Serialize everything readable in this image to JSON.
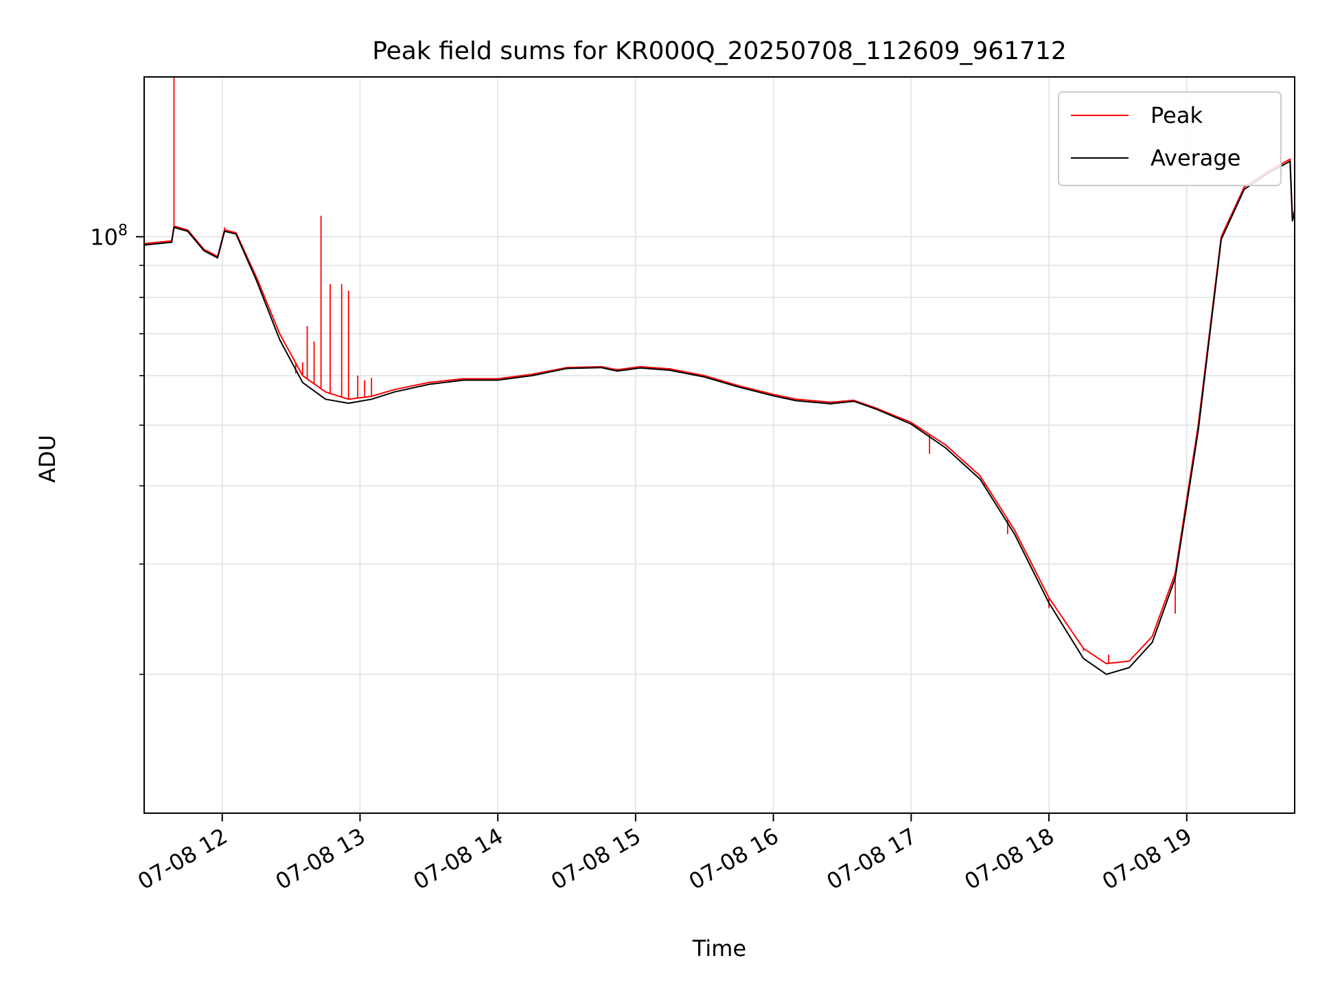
{
  "chart_data": {
    "type": "line",
    "title": "Peak field sums for KR000Q_20250708_112609_961712",
    "xlabel": "Time",
    "ylabel": "ADU",
    "y_scale": "log",
    "x_range": [
      "2025-07-08 11:26",
      "2025-07-08 19:47"
    ],
    "ylim": [
      12000000,
      180000000
    ],
    "x_tick_labels": [
      "07-08 12",
      "07-08 13",
      "07-08 14",
      "07-08 15",
      "07-08 16",
      "07-08 17",
      "07-08 18",
      "07-08 19"
    ],
    "x_ticks": [
      "2025-07-08 12:00",
      "2025-07-08 13:00",
      "2025-07-08 14:00",
      "2025-07-08 15:00",
      "2025-07-08 16:00",
      "2025-07-08 17:00",
      "2025-07-08 18:00",
      "2025-07-08 19:00"
    ],
    "y_major_ticks": [
      {
        "value": 100000000,
        "base": "10",
        "exp": "8"
      }
    ],
    "y_minor_ticks": [
      20000000,
      30000000,
      40000000,
      50000000,
      60000000,
      70000000,
      80000000,
      90000000
    ],
    "grid": true,
    "legend_position": "top-right",
    "series": [
      {
        "name": "Peak",
        "color": "#ff0000",
        "points": [
          [
            "2025-07-08 11:26",
            97500000
          ],
          [
            "2025-07-08 11:38",
            98500000
          ],
          [
            "2025-07-08 11:39",
            104000000
          ],
          [
            "2025-07-08 11:45",
            102500000
          ],
          [
            "2025-07-08 11:52",
            95500000
          ],
          [
            "2025-07-08 11:58",
            93000000
          ],
          [
            "2025-07-08 12:01",
            102500000
          ],
          [
            "2025-07-08 12:06",
            101500000
          ],
          [
            "2025-07-08 12:15",
            86000000
          ],
          [
            "2025-07-08 12:25",
            70000000
          ],
          [
            "2025-07-08 12:35",
            60000000
          ],
          [
            "2025-07-08 12:45",
            56500000
          ],
          [
            "2025-07-08 12:55",
            55000000
          ],
          [
            "2025-07-08 13:05",
            55600000
          ],
          [
            "2025-07-08 13:15",
            57000000
          ],
          [
            "2025-07-08 13:30",
            58500000
          ],
          [
            "2025-07-08 13:45",
            59300000
          ],
          [
            "2025-07-08 14:00",
            59300000
          ],
          [
            "2025-07-08 14:15",
            60300000
          ],
          [
            "2025-07-08 14:30",
            61800000
          ],
          [
            "2025-07-08 14:45",
            62000000
          ],
          [
            "2025-07-08 14:52",
            61300000
          ],
          [
            "2025-07-08 15:02",
            62000000
          ],
          [
            "2025-07-08 15:15",
            61500000
          ],
          [
            "2025-07-08 15:30",
            60000000
          ],
          [
            "2025-07-08 15:45",
            57800000
          ],
          [
            "2025-07-08 16:00",
            56000000
          ],
          [
            "2025-07-08 16:10",
            55000000
          ],
          [
            "2025-07-08 16:25",
            54400000
          ],
          [
            "2025-07-08 16:35",
            54800000
          ],
          [
            "2025-07-08 16:45",
            53200000
          ],
          [
            "2025-07-08 17:00",
            50500000
          ],
          [
            "2025-07-08 17:15",
            46500000
          ],
          [
            "2025-07-08 17:30",
            41500000
          ],
          [
            "2025-07-08 17:45",
            34000000
          ],
          [
            "2025-07-08 18:00",
            26500000
          ],
          [
            "2025-07-08 18:15",
            22000000
          ],
          [
            "2025-07-08 18:25",
            20800000
          ],
          [
            "2025-07-08 18:35",
            21000000
          ],
          [
            "2025-07-08 18:45",
            23000000
          ],
          [
            "2025-07-08 18:55",
            29000000
          ],
          [
            "2025-07-08 19:05",
            50000000
          ],
          [
            "2025-07-08 19:15",
            100000000
          ],
          [
            "2025-07-08 19:25",
            120000000
          ],
          [
            "2025-07-08 19:35",
            127000000
          ],
          [
            "2025-07-08 19:45",
            133000000
          ],
          [
            "2025-07-08 19:46",
            108000000
          ],
          [
            "2025-07-08 19:47",
            110000000
          ]
        ],
        "spikes": [
          [
            "2025-07-08 11:39",
            180000000
          ],
          [
            "2025-07-08 12:01",
            103500000
          ],
          [
            "2025-07-08 12:32",
            60500000
          ],
          [
            "2025-07-08 12:35",
            63000000
          ],
          [
            "2025-07-08 12:37",
            72000000
          ],
          [
            "2025-07-08 12:40",
            68000000
          ],
          [
            "2025-07-08 12:43",
            108000000
          ],
          [
            "2025-07-08 12:47",
            84000000
          ],
          [
            "2025-07-08 12:52",
            84000000
          ],
          [
            "2025-07-08 12:55",
            82000000
          ],
          [
            "2025-07-08 12:59",
            60000000
          ],
          [
            "2025-07-08 13:02",
            59000000
          ],
          [
            "2025-07-08 13:05",
            59500000
          ],
          [
            "2025-07-08 17:08",
            45000000
          ],
          [
            "2025-07-08 17:32",
            40000000
          ],
          [
            "2025-07-08 17:42",
            33500000
          ],
          [
            "2025-07-08 18:00",
            25500000
          ],
          [
            "2025-07-08 18:15",
            21800000
          ],
          [
            "2025-07-08 18:26",
            21500000
          ],
          [
            "2025-07-08 18:55",
            25000000
          ]
        ]
      },
      {
        "name": "Average",
        "color": "#000000",
        "points": [
          [
            "2025-07-08 11:26",
            97000000
          ],
          [
            "2025-07-08 11:38",
            98000000
          ],
          [
            "2025-07-08 11:39",
            103500000
          ],
          [
            "2025-07-08 11:45",
            102000000
          ],
          [
            "2025-07-08 11:52",
            95000000
          ],
          [
            "2025-07-08 11:58",
            92500000
          ],
          [
            "2025-07-08 12:01",
            102000000
          ],
          [
            "2025-07-08 12:06",
            101000000
          ],
          [
            "2025-07-08 12:15",
            85000000
          ],
          [
            "2025-07-08 12:25",
            68500000
          ],
          [
            "2025-07-08 12:35",
            58500000
          ],
          [
            "2025-07-08 12:45",
            55000000
          ],
          [
            "2025-07-08 12:55",
            54200000
          ],
          [
            "2025-07-08 13:05",
            55000000
          ],
          [
            "2025-07-08 13:15",
            56500000
          ],
          [
            "2025-07-08 13:30",
            58100000
          ],
          [
            "2025-07-08 13:45",
            59000000
          ],
          [
            "2025-07-08 14:00",
            59000000
          ],
          [
            "2025-07-08 14:15",
            60000000
          ],
          [
            "2025-07-08 14:30",
            61600000
          ],
          [
            "2025-07-08 14:45",
            61800000
          ],
          [
            "2025-07-08 14:52",
            61000000
          ],
          [
            "2025-07-08 15:02",
            61700000
          ],
          [
            "2025-07-08 15:15",
            61200000
          ],
          [
            "2025-07-08 15:30",
            59700000
          ],
          [
            "2025-07-08 15:45",
            57500000
          ],
          [
            "2025-07-08 16:00",
            55700000
          ],
          [
            "2025-07-08 16:10",
            54700000
          ],
          [
            "2025-07-08 16:25",
            54100000
          ],
          [
            "2025-07-08 16:35",
            54600000
          ],
          [
            "2025-07-08 16:45",
            53000000
          ],
          [
            "2025-07-08 17:00",
            50200000
          ],
          [
            "2025-07-08 17:15",
            46000000
          ],
          [
            "2025-07-08 17:30",
            41000000
          ],
          [
            "2025-07-08 17:45",
            33500000
          ],
          [
            "2025-07-08 18:00",
            26000000
          ],
          [
            "2025-07-08 18:15",
            21200000
          ],
          [
            "2025-07-08 18:25",
            20000000
          ],
          [
            "2025-07-08 18:35",
            20500000
          ],
          [
            "2025-07-08 18:45",
            22500000
          ],
          [
            "2025-07-08 18:55",
            28500000
          ],
          [
            "2025-07-08 19:05",
            49000000
          ],
          [
            "2025-07-08 19:15",
            99000000
          ],
          [
            "2025-07-08 19:25",
            119000000
          ],
          [
            "2025-07-08 19:35",
            126000000
          ],
          [
            "2025-07-08 19:45",
            132000000
          ],
          [
            "2025-07-08 19:46",
            106000000
          ],
          [
            "2025-07-08 19:47",
            109000000
          ]
        ]
      }
    ]
  }
}
